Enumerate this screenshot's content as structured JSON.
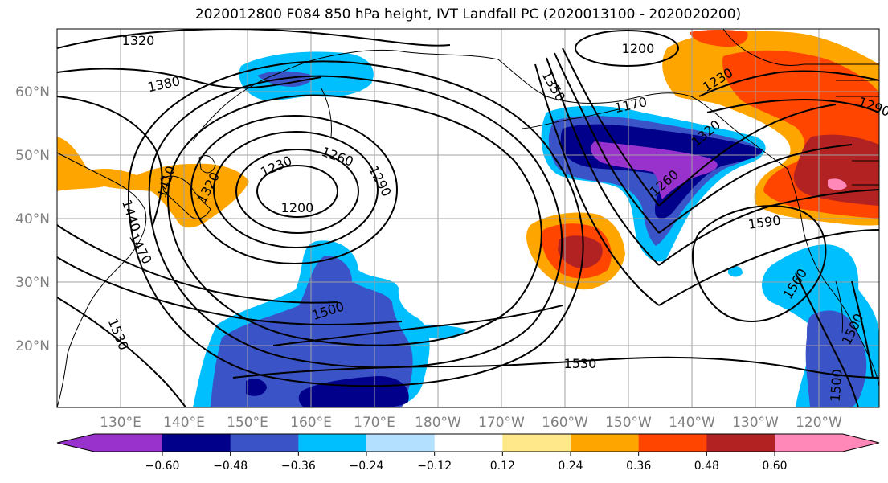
{
  "title": "2020012800 F084 850 hPa height, IVT Landfall PC (2020013100 - 2020020200)",
  "map": {
    "lat_ticks": [
      "60°N",
      "50°N",
      "40°N",
      "30°N",
      "20°N"
    ],
    "lon_ticks": [
      "130°E",
      "140°E",
      "150°E",
      "160°E",
      "170°E",
      "180°W",
      "170°W",
      "160°W",
      "150°W",
      "140°W",
      "130°W",
      "120°W"
    ],
    "contour_labels": [
      "1320",
      "1380",
      "1410",
      "1440",
      "1470",
      "1530",
      "1230",
      "1260",
      "1290",
      "1200",
      "1500",
      "1200",
      "1170",
      "1230",
      "1290",
      "1590",
      "1560",
      "1530",
      "1500",
      "1500",
      "1320",
      "1260",
      "1320",
      "1350"
    ],
    "colors": {
      "purple": "#9932cc",
      "navy": "#00008b",
      "royalblue": "#3a54c8",
      "deepskyblue": "#00bfff",
      "lightblue": "#b3e0ff",
      "white": "#ffffff",
      "lightyellow": "#ffe88a",
      "orange": "#ffa500",
      "orangered": "#ff4500",
      "firebrick": "#b22222",
      "pink": "#ff88b8"
    }
  },
  "colorbar": {
    "tick_labels": [
      "−0.60",
      "−0.48",
      "−0.36",
      "−0.24",
      "−0.12",
      "0.12",
      "0.24",
      "0.36",
      "0.48",
      "0.60"
    ],
    "bin_colors": [
      "#9932cc",
      "#00008b",
      "#3a54c8",
      "#00bfff",
      "#b3e0ff",
      "#ffffff",
      "#ffe88a",
      "#ffa500",
      "#ff4500",
      "#b22222",
      "#ff88b8"
    ]
  }
}
